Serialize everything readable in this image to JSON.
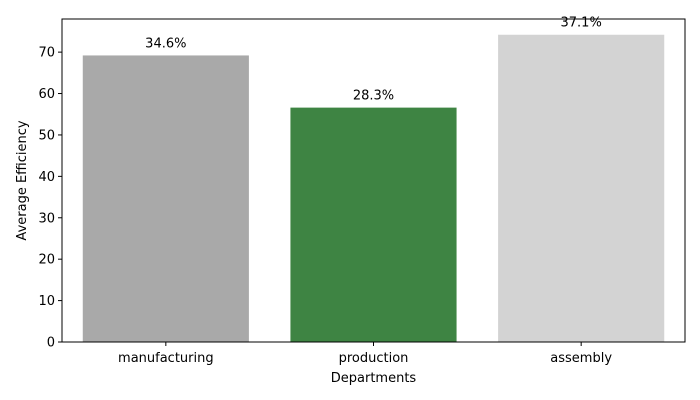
{
  "chart_data": {
    "type": "bar",
    "categories": [
      "manufacturing",
      "production",
      "assembly"
    ],
    "values": [
      69.2,
      56.6,
      74.2
    ],
    "data_labels": [
      "34.6%",
      "28.3%",
      "37.1%"
    ],
    "colors": [
      "#a9a9a9",
      "#3e8443",
      "#d3d3d3"
    ],
    "title": "",
    "xlabel": "Departments",
    "ylabel": "Average Efficiency",
    "ylim": [
      0,
      78
    ],
    "yticks": [
      0,
      10,
      20,
      30,
      40,
      50,
      60,
      70
    ],
    "grid": false,
    "legend": "none"
  }
}
